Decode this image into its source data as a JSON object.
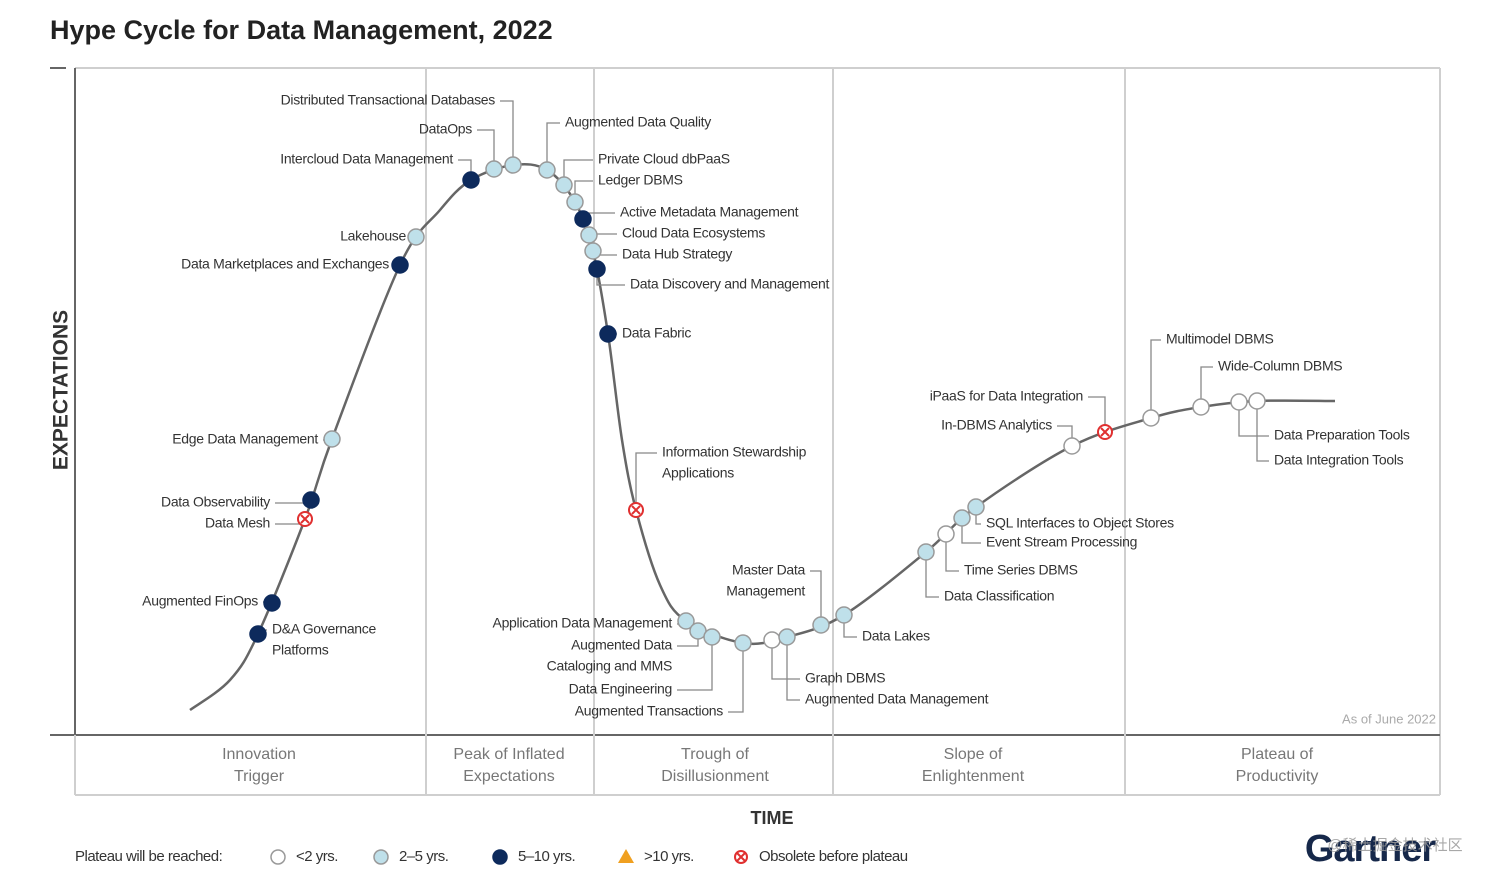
{
  "title": "Hype Cycle for Data Management, 2022",
  "y_axis_label": "EXPECTATIONS",
  "x_axis_label": "TIME",
  "note": "As of June 2022",
  "phases": [
    {
      "lines": [
        "Innovation",
        "Trigger"
      ]
    },
    {
      "lines": [
        "Peak of Inflated",
        "Expectations"
      ]
    },
    {
      "lines": [
        "Trough of",
        "Disillusionment"
      ]
    },
    {
      "lines": [
        "Slope of",
        "Enlightenment"
      ]
    },
    {
      "lines": [
        "Plateau of",
        "Productivity"
      ]
    }
  ],
  "items": [
    {
      "lines": [
        "Distributed Transactional Databases"
      ]
    },
    {
      "lines": [
        "DataOps"
      ]
    },
    {
      "lines": [
        "Intercloud Data Management"
      ]
    },
    {
      "lines": [
        "Augmented Data Quality"
      ]
    },
    {
      "lines": [
        "Private Cloud dbPaaS"
      ]
    },
    {
      "lines": [
        "Ledger DBMS"
      ]
    },
    {
      "lines": [
        "Active Metadata Management"
      ]
    },
    {
      "lines": [
        "Cloud Data Ecosystems"
      ]
    },
    {
      "lines": [
        "Data Hub Strategy"
      ]
    },
    {
      "lines": [
        "Data Discovery and Management"
      ]
    },
    {
      "lines": [
        "Data Fabric"
      ]
    },
    {
      "lines": [
        "Information Stewardship",
        "Applications"
      ]
    },
    {
      "lines": [
        "Lakehouse"
      ]
    },
    {
      "lines": [
        "Data Marketplaces and Exchanges"
      ]
    },
    {
      "lines": [
        "Edge Data Management"
      ]
    },
    {
      "lines": [
        "Data Observability"
      ]
    },
    {
      "lines": [
        "Data Mesh"
      ]
    },
    {
      "lines": [
        "Augmented FinOps"
      ]
    },
    {
      "lines": [
        "D&A Governance",
        "Platforms"
      ]
    },
    {
      "lines": [
        "Application Data Management"
      ]
    },
    {
      "lines": [
        "Augmented Data",
        "Cataloging and MMS"
      ]
    },
    {
      "lines": [
        "Data Engineering"
      ]
    },
    {
      "lines": [
        "Augmented Transactions"
      ]
    },
    {
      "lines": [
        "Master Data",
        "Management"
      ]
    },
    {
      "lines": [
        "Graph DBMS"
      ]
    },
    {
      "lines": [
        "Augmented Data Management"
      ]
    },
    {
      "lines": [
        "Data Lakes"
      ]
    },
    {
      "lines": [
        "Data Classification"
      ]
    },
    {
      "lines": [
        "Time Series DBMS"
      ]
    },
    {
      "lines": [
        "Event Stream Processing"
      ]
    },
    {
      "lines": [
        "SQL Interfaces to Object Stores"
      ]
    },
    {
      "lines": [
        "In-DBMS Analytics"
      ]
    },
    {
      "lines": [
        "iPaaS for Data Integration"
      ]
    },
    {
      "lines": [
        "Multimodel DBMS"
      ]
    },
    {
      "lines": [
        "Wide-Column DBMS"
      ]
    },
    {
      "lines": [
        "Data Preparation Tools"
      ]
    },
    {
      "lines": [
        "Data Integration Tools"
      ]
    }
  ],
  "legend": {
    "title": "Plateau will be reached:",
    "items": [
      "<2 yrs.",
      "2–5 yrs.",
      "5–10 yrs.",
      ">10 yrs.",
      "Obsolete before plateau"
    ]
  },
  "logo": "Gartner",
  "watermark": "@稀土掘金技术社区"
}
